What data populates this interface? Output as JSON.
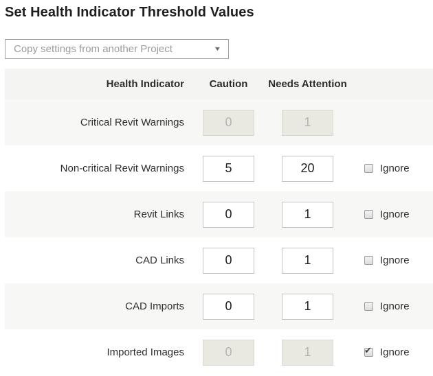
{
  "title": "Set Health Indicator Threshold Values",
  "copy_dropdown": {
    "value": "Copy settings from another Project"
  },
  "icons": {
    "caret_down": "▼",
    "checkmark": "✔"
  },
  "table": {
    "headers": {
      "indicator": "Health Indicator",
      "caution": "Caution",
      "needs_attention": "Needs Attention"
    },
    "ignore_label": "Ignore",
    "rows": [
      {
        "label": "Critical Revit Warnings",
        "caution": "0",
        "needs_attention": "1",
        "inputs_disabled": true,
        "has_ignore": false,
        "ignore_checked": false
      },
      {
        "label": "Non-critical Revit Warnings",
        "caution": "5",
        "needs_attention": "20",
        "inputs_disabled": false,
        "has_ignore": true,
        "ignore_checked": false
      },
      {
        "label": "Revit Links",
        "caution": "0",
        "needs_attention": "1",
        "inputs_disabled": false,
        "has_ignore": true,
        "ignore_checked": false
      },
      {
        "label": "CAD Links",
        "caution": "0",
        "needs_attention": "1",
        "inputs_disabled": false,
        "has_ignore": true,
        "ignore_checked": false
      },
      {
        "label": "CAD Imports",
        "caution": "0",
        "needs_attention": "1",
        "inputs_disabled": false,
        "has_ignore": true,
        "ignore_checked": false
      },
      {
        "label": "Imported Images",
        "caution": "0",
        "needs_attention": "1",
        "inputs_disabled": true,
        "has_ignore": true,
        "ignore_checked": true
      }
    ]
  },
  "colors": {
    "header_row_bg": "#f4f4f2",
    "alt_row_bg": "#f7f7f5",
    "disabled_input_bg": "#e9e9e2",
    "disabled_input_border": "#d9d9d0",
    "disabled_input_text": "#b5b5b0",
    "input_border": "#c3c3c3",
    "title_text": "#1f1f1f",
    "dropdown_text": "#9b9b9b"
  }
}
